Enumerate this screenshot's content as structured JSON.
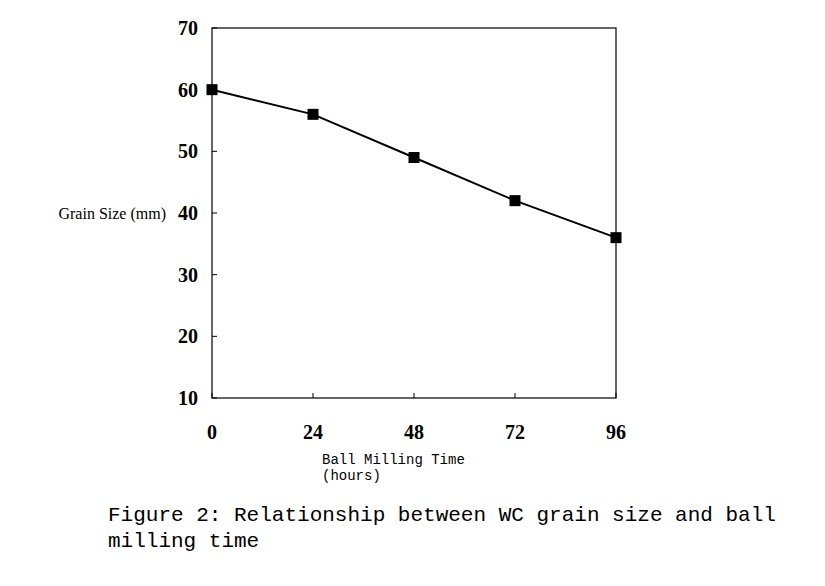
{
  "chart_data": {
    "type": "line",
    "title": "Figure 2: Relationship between WC grain size and ball milling time",
    "x_label": "Ball Milling Time\n(hours)",
    "y_label": "Grain Size (mm)",
    "x": [
      0,
      24,
      48,
      72,
      96
    ],
    "values": [
      60,
      56,
      49,
      42,
      36
    ],
    "color": "#000000",
    "marker": "square",
    "line_style": "solid",
    "xlim": [
      0,
      96
    ],
    "xticks": [
      0,
      24,
      48,
      72,
      96
    ],
    "ylim": [
      10,
      70
    ],
    "yticks": [
      10,
      20,
      30,
      40,
      50,
      60,
      70
    ],
    "grid": false
  }
}
